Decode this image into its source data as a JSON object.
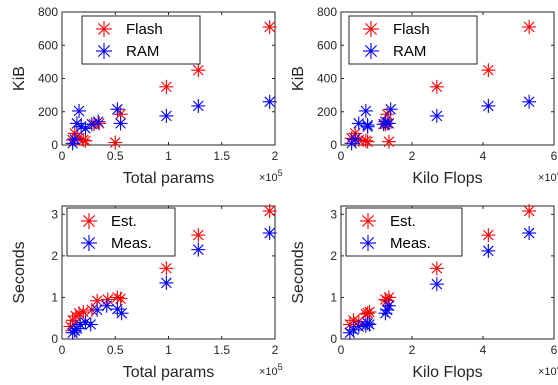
{
  "colors": {
    "series1": "#ff0000",
    "series2": "#0000ff",
    "axis": "#262626"
  },
  "chart_data": [
    {
      "type": "scatter",
      "marker": "asterisk",
      "xlabel": "Total params",
      "ylabel": "KiB",
      "x_multiplier": "×10",
      "x_exponent": "5",
      "xlim": [
        0,
        2
      ],
      "ylim": [
        0,
        800
      ],
      "xticks": [
        0,
        0.5,
        1,
        1.5,
        2
      ],
      "yticks": [
        0,
        200,
        400,
        600,
        800
      ],
      "xtick_labels": [
        "0",
        "0.5",
        "1",
        "1.5",
        "2"
      ],
      "ytick_labels": [
        "0",
        "200",
        "400",
        "600",
        "800"
      ],
      "legend": "top-center",
      "series": [
        {
          "name": "Flash",
          "color": "#ff0000",
          "points": [
            [
              0.1,
              30
            ],
            [
              0.12,
              70
            ],
            [
              0.15,
              40
            ],
            [
              0.2,
              30
            ],
            [
              0.22,
              25
            ],
            [
              0.3,
              125
            ],
            [
              0.35,
              130
            ],
            [
              0.5,
              15
            ],
            [
              0.55,
              185
            ],
            [
              0.98,
              350
            ],
            [
              1.28,
              450
            ],
            [
              1.95,
              710
            ]
          ]
        },
        {
          "name": "RAM",
          "color": "#0000ff",
          "points": [
            [
              0.1,
              10
            ],
            [
              0.12,
              35
            ],
            [
              0.14,
              130
            ],
            [
              0.16,
              205
            ],
            [
              0.18,
              110
            ],
            [
              0.22,
              100
            ],
            [
              0.28,
              125
            ],
            [
              0.34,
              140
            ],
            [
              0.52,
              215
            ],
            [
              0.55,
              130
            ],
            [
              0.98,
              175
            ],
            [
              1.28,
              235
            ],
            [
              1.95,
              260
            ]
          ]
        }
      ]
    },
    {
      "type": "scatter",
      "marker": "asterisk",
      "xlabel": "Kilo Flops",
      "ylabel": "KiB",
      "x_multiplier": "×10",
      "x_exponent": "4",
      "xlim": [
        0,
        6
      ],
      "ylim": [
        0,
        800
      ],
      "xticks": [
        0,
        2,
        4,
        6
      ],
      "yticks": [
        0,
        200,
        400,
        600,
        800
      ],
      "xtick_labels": [
        "0",
        "2",
        "4",
        "6"
      ],
      "ytick_labels": [
        "0",
        "200",
        "400",
        "600",
        "800"
      ],
      "legend": "top-center",
      "series": [
        {
          "name": "Flash",
          "color": "#ff0000",
          "points": [
            [
              0.3,
              40
            ],
            [
              0.4,
              70
            ],
            [
              0.5,
              30
            ],
            [
              0.7,
              25
            ],
            [
              0.75,
              20
            ],
            [
              1.25,
              125
            ],
            [
              1.3,
              130
            ],
            [
              1.35,
              20
            ],
            [
              1.3,
              185
            ],
            [
              2.7,
              350
            ],
            [
              4.15,
              450
            ],
            [
              5.3,
              710
            ]
          ]
        },
        {
          "name": "RAM",
          "color": "#0000ff",
          "points": [
            [
              0.3,
              10
            ],
            [
              0.4,
              35
            ],
            [
              0.5,
              130
            ],
            [
              0.7,
              205
            ],
            [
              0.75,
              110
            ],
            [
              0.75,
              120
            ],
            [
              1.2,
              125
            ],
            [
              1.25,
              140
            ],
            [
              1.4,
              215
            ],
            [
              1.35,
              130
            ],
            [
              2.7,
              175
            ],
            [
              4.15,
              235
            ],
            [
              5.3,
              260
            ]
          ]
        }
      ]
    },
    {
      "type": "scatter",
      "marker": "asterisk",
      "xlabel": "Total params",
      "ylabel": "Seconds",
      "x_multiplier": "×10",
      "x_exponent": "5",
      "xlim": [
        0,
        2
      ],
      "ylim": [
        0,
        3.2
      ],
      "xticks": [
        0,
        0.5,
        1,
        1.5,
        2
      ],
      "yticks": [
        0,
        1,
        2,
        3
      ],
      "xtick_labels": [
        "0",
        "0.5",
        "1",
        "1.5",
        "2"
      ],
      "ytick_labels": [
        "0",
        "1",
        "2",
        "3"
      ],
      "legend": "top-left",
      "series": [
        {
          "name": "Est.",
          "color": "#ff0000",
          "points": [
            [
              0.08,
              0.3
            ],
            [
              0.1,
              0.45
            ],
            [
              0.13,
              0.55
            ],
            [
              0.16,
              0.62
            ],
            [
              0.2,
              0.65
            ],
            [
              0.28,
              0.7
            ],
            [
              0.33,
              0.92
            ],
            [
              0.43,
              0.95
            ],
            [
              0.52,
              1.0
            ],
            [
              0.55,
              0.97
            ],
            [
              0.98,
              1.7
            ],
            [
              1.28,
              2.5
            ],
            [
              1.95,
              3.08
            ]
          ]
        },
        {
          "name": "Meas.",
          "color": "#0000ff",
          "points": [
            [
              0.1,
              0.15
            ],
            [
              0.12,
              0.2
            ],
            [
              0.14,
              0.25
            ],
            [
              0.17,
              0.35
            ],
            [
              0.22,
              0.4
            ],
            [
              0.27,
              0.35
            ],
            [
              0.33,
              0.7
            ],
            [
              0.42,
              0.8
            ],
            [
              0.52,
              0.72
            ],
            [
              0.56,
              0.62
            ],
            [
              0.98,
              1.35
            ],
            [
              1.28,
              2.15
            ],
            [
              1.95,
              2.55
            ]
          ]
        }
      ]
    },
    {
      "type": "scatter",
      "marker": "asterisk",
      "xlabel": "Kilo Flops",
      "ylabel": "Seconds",
      "x_multiplier": "×10",
      "x_exponent": "4",
      "xlim": [
        0,
        6
      ],
      "ylim": [
        0,
        3.2
      ],
      "xticks": [
        0,
        2,
        4,
        6
      ],
      "yticks": [
        0,
        1,
        2,
        3
      ],
      "xtick_labels": [
        "0",
        "2",
        "4",
        "6"
      ],
      "ytick_labels": [
        "0",
        "1",
        "2",
        "3"
      ],
      "legend": "top-left",
      "series": [
        {
          "name": "Est.",
          "color": "#ff0000",
          "points": [
            [
              0.25,
              0.35
            ],
            [
              0.35,
              0.45
            ],
            [
              0.5,
              0.42
            ],
            [
              0.7,
              0.6
            ],
            [
              0.75,
              0.62
            ],
            [
              0.8,
              0.65
            ],
            [
              1.25,
              0.95
            ],
            [
              1.3,
              0.92
            ],
            [
              1.35,
              1.0
            ],
            [
              2.7,
              1.7
            ],
            [
              4.15,
              2.5
            ],
            [
              5.3,
              3.08
            ]
          ]
        },
        {
          "name": "Meas.",
          "color": "#0000ff",
          "points": [
            [
              0.25,
              0.15
            ],
            [
              0.35,
              0.22
            ],
            [
              0.5,
              0.3
            ],
            [
              0.7,
              0.32
            ],
            [
              0.75,
              0.38
            ],
            [
              0.8,
              0.35
            ],
            [
              1.25,
              0.62
            ],
            [
              1.3,
              0.7
            ],
            [
              1.35,
              0.8
            ],
            [
              2.7,
              1.32
            ],
            [
              4.15,
              2.12
            ],
            [
              5.3,
              2.55
            ]
          ]
        }
      ]
    }
  ]
}
